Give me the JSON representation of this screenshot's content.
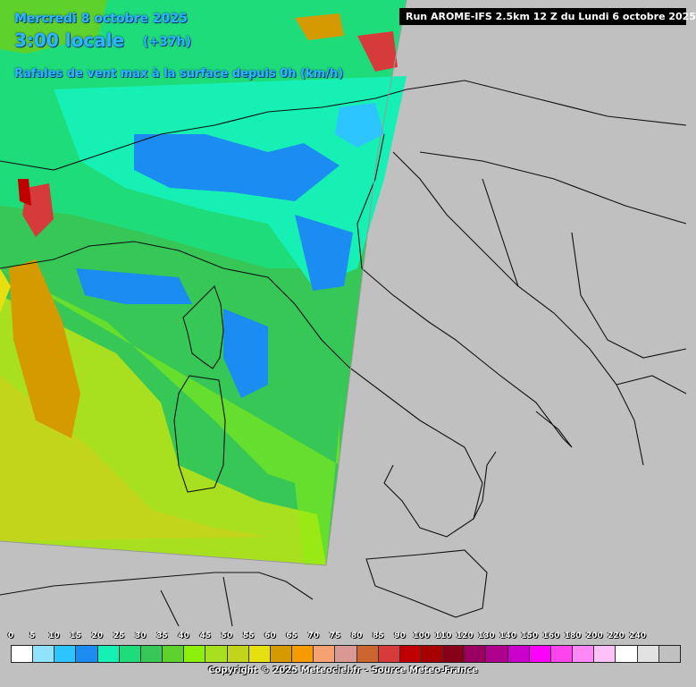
{
  "header": {
    "date_line": "Mercredi 8 octobre 2025",
    "time_line": "3:00 locale",
    "lead_time": "(+37h)",
    "parameter": "Rafales de vent max à la surface depuis 0h (km/h)",
    "run_info": "Run AROME-IFS 2.5km 12 Z du Lundi 6 octobre 2025"
  },
  "legend": {
    "unit": "km/h",
    "steps": [
      {
        "label": "0",
        "color": "#ffffff"
      },
      {
        "label": "5",
        "color": "#8fe3ff"
      },
      {
        "label": "10",
        "color": "#2cc5ff"
      },
      {
        "label": "15",
        "color": "#1b8cf2"
      },
      {
        "label": "20",
        "color": "#16f0b4"
      },
      {
        "label": "25",
        "color": "#1fdc7a"
      },
      {
        "label": "30",
        "color": "#36c756"
      },
      {
        "label": "35",
        "color": "#5fd12c"
      },
      {
        "label": "40",
        "color": "#8cf00c"
      },
      {
        "label": "45",
        "color": "#a8e020"
      },
      {
        "label": "50",
        "color": "#c3d51a"
      },
      {
        "label": "55",
        "color": "#e6e010"
      },
      {
        "label": "60",
        "color": "#d59a00"
      },
      {
        "label": "65",
        "color": "#f59b00"
      },
      {
        "label": "70",
        "color": "#f7a072"
      },
      {
        "label": "75",
        "color": "#d99893"
      },
      {
        "label": "80",
        "color": "#cd6530"
      },
      {
        "label": "85",
        "color": "#d63a3a"
      },
      {
        "label": "90",
        "color": "#c00000"
      },
      {
        "label": "100",
        "color": "#a80000"
      },
      {
        "label": "110",
        "color": "#880018"
      },
      {
        "label": "120",
        "color": "#9b0060"
      },
      {
        "label": "130",
        "color": "#b0008e"
      },
      {
        "label": "140",
        "color": "#cc00cc"
      },
      {
        "label": "150",
        "color": "#ff00ff"
      },
      {
        "label": "160",
        "color": "#ff44ee"
      },
      {
        "label": "180",
        "color": "#ff88f8"
      },
      {
        "label": "200",
        "color": "#ffc2f8"
      },
      {
        "label": "220",
        "color": "#ffffff"
      },
      {
        "label": "240",
        "color": "#e2e2e2"
      },
      {
        "label": "",
        "color": "#c0c0c0"
      }
    ]
  },
  "copyright": "Copyright © 2025 Meteociel.fr - Source Meteo-France"
}
